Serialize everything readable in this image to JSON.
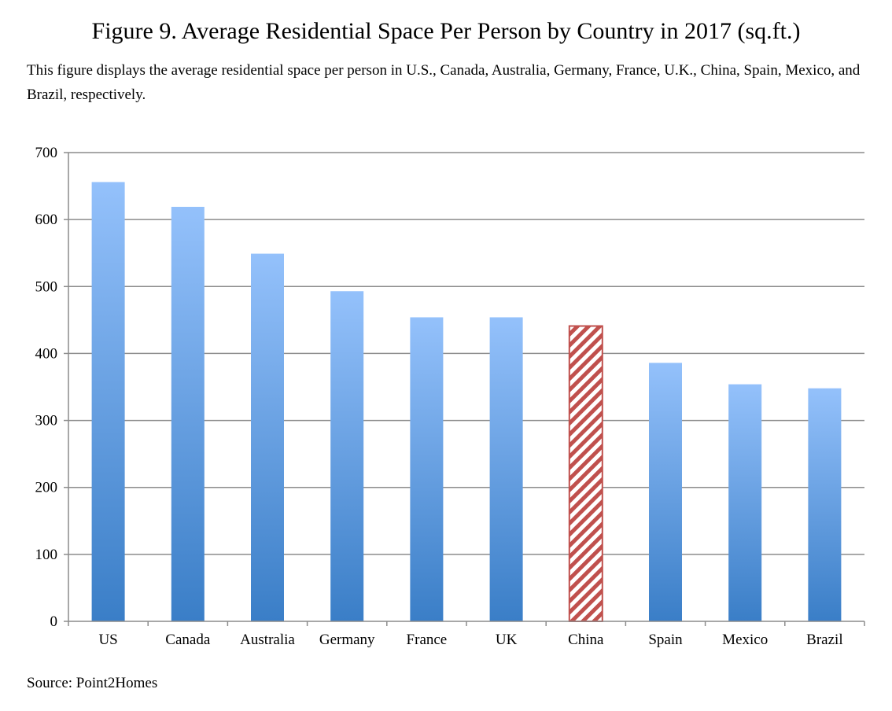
{
  "figure": {
    "title": "Figure 9. Average Residential Space Per Person by Country in 2017 (sq.ft.)",
    "caption": "This figure displays the average residential space per person in U.S., Canada, Australia, Germany, France, U.K., China, Spain, Mexico, and Brazil, respectively.",
    "source": "Source: Point2Homes"
  },
  "colors": {
    "bar_gradient_top": "#94c1fb",
    "bar_gradient_bottom": "#3a7ec7",
    "highlight_stripe": "#c0504d",
    "gridline": "#8c8c8c"
  },
  "chart_data": {
    "type": "bar",
    "categories": [
      "US",
      "Canada",
      "Australia",
      "Germany",
      "France",
      "UK",
      "China",
      "Spain",
      "Mexico",
      "Brazil"
    ],
    "values": [
      656,
      619,
      549,
      493,
      454,
      454,
      441,
      386,
      354,
      348
    ],
    "highlight": "China",
    "title": "Figure 9. Average Residential Space Per Person by Country in 2017 (sq.ft.)",
    "xlabel": "",
    "ylabel": "",
    "ylim": [
      0,
      700
    ],
    "yticks": [
      0,
      100,
      200,
      300,
      400,
      500,
      600,
      700
    ],
    "grid": true,
    "legend": "none"
  }
}
